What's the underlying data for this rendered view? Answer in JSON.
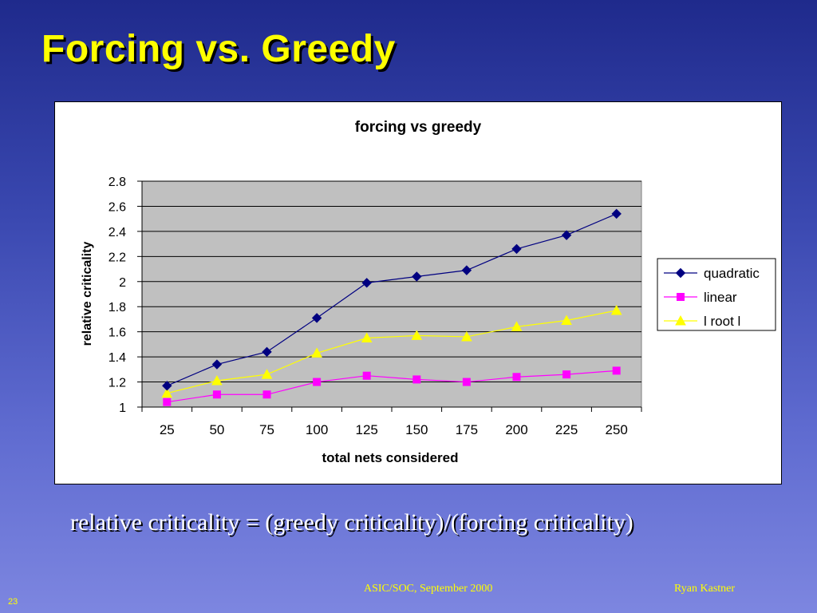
{
  "slide": {
    "title": "Forcing vs. Greedy",
    "formula": "relative criticality = (greedy criticality)/(forcing criticality)",
    "footer_left": "ASIC/SOC, September 2000",
    "footer_right": "Ryan Kastner",
    "page_number": "23",
    "colors": {
      "background": "#3a48b0",
      "title": "#ffff00",
      "plot_bg": "#c0c0c0"
    }
  },
  "chart_data": {
    "type": "line",
    "title": "forcing vs greedy",
    "xlabel": "total nets considered",
    "ylabel": "relative criticality",
    "categories": [
      "25",
      "50",
      "75",
      "100",
      "125",
      "150",
      "175",
      "200",
      "225",
      "250"
    ],
    "ylim": [
      1,
      2.8
    ],
    "yticks": [
      "1",
      "1.2",
      "1.4",
      "1.6",
      "1.8",
      "2",
      "2.2",
      "2.4",
      "2.6",
      "2.8"
    ],
    "grid": true,
    "legend_position": "right",
    "series": [
      {
        "name": "quadratic",
        "color": "#000080",
        "marker": "diamond",
        "values": [
          1.17,
          1.34,
          1.44,
          1.71,
          1.99,
          2.04,
          2.09,
          2.26,
          2.37,
          2.54
        ]
      },
      {
        "name": "linear",
        "color": "#ff00ff",
        "marker": "square",
        "values": [
          1.04,
          1.1,
          1.1,
          1.2,
          1.25,
          1.22,
          1.2,
          1.24,
          1.26,
          1.29
        ]
      },
      {
        "name": "l root l",
        "color": "#ffff00",
        "marker": "triangle",
        "values": [
          1.11,
          1.21,
          1.26,
          1.43,
          1.55,
          1.57,
          1.56,
          1.64,
          1.69,
          1.77
        ]
      }
    ]
  }
}
